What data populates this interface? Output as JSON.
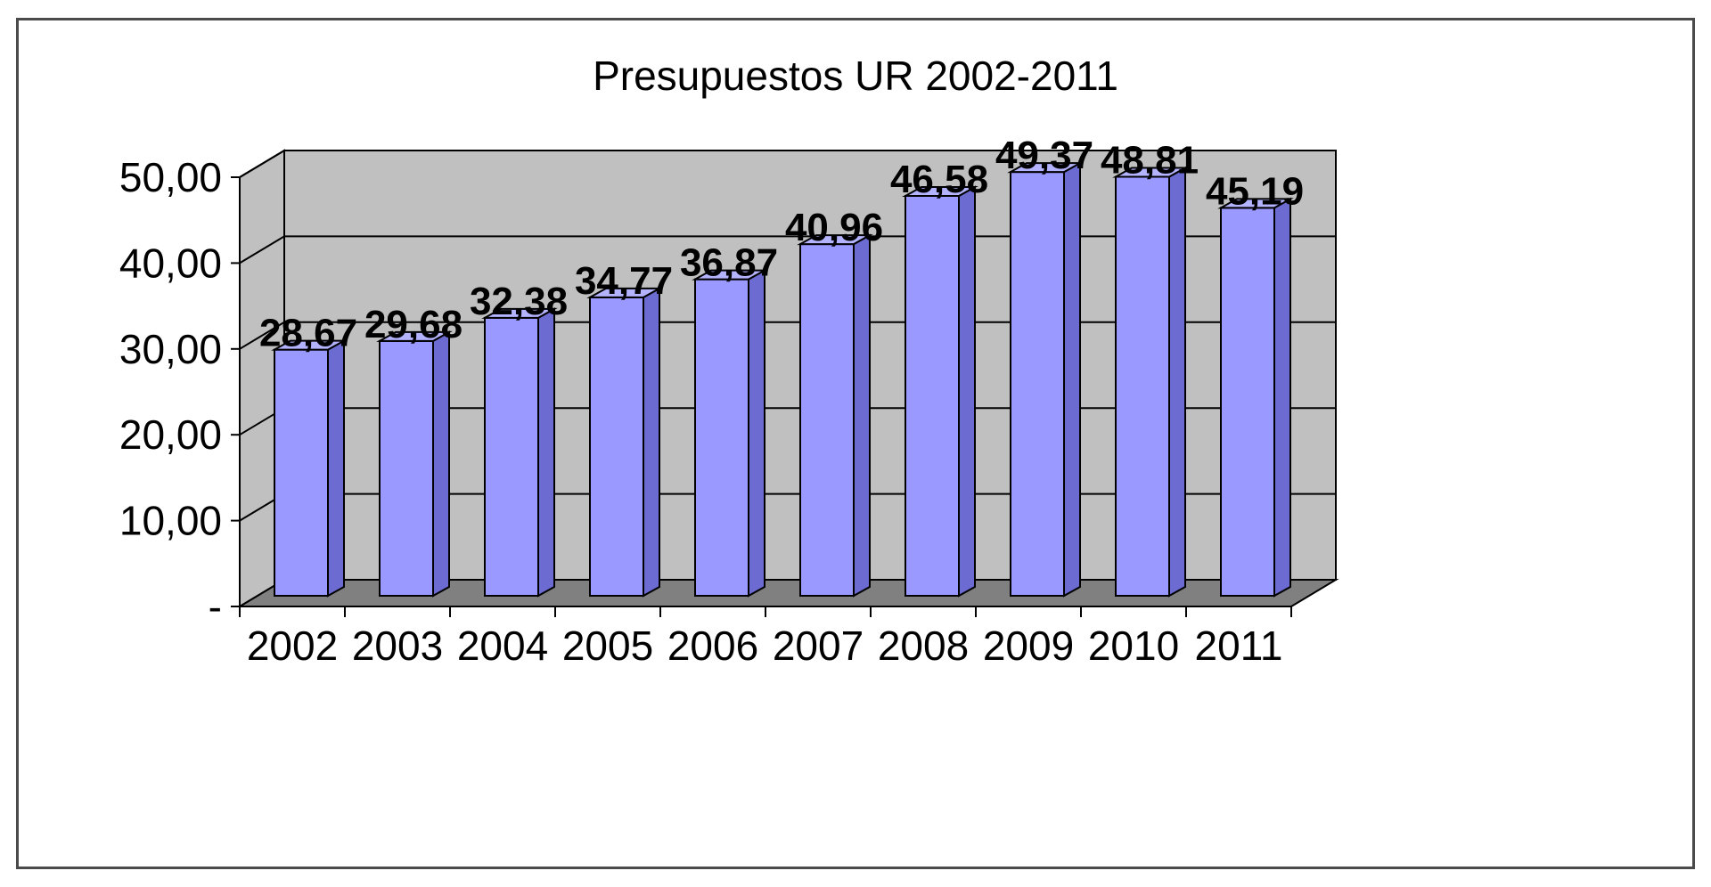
{
  "chart_data": {
    "type": "bar",
    "title": "Presupuestos UR 2002-2011",
    "xlabel": "",
    "ylabel": "",
    "categories": [
      "2002",
      "2003",
      "2004",
      "2005",
      "2006",
      "2007",
      "2008",
      "2009",
      "2010",
      "2011"
    ],
    "values": [
      28.67,
      29.68,
      32.38,
      34.77,
      36.87,
      40.96,
      46.58,
      49.37,
      48.81,
      45.19
    ],
    "data_labels": [
      "28,67",
      "29,68",
      "32,38",
      "34,77",
      "36,87",
      "40,96",
      "46,58",
      "49,37",
      "48,81",
      "45,19"
    ],
    "ylim": [
      0,
      50
    ],
    "y_ticks": [
      0,
      10,
      20,
      30,
      40,
      50
    ],
    "y_tick_labels": [
      "-",
      "10,00",
      "20,00",
      "30,00",
      "40,00",
      "50,00"
    ],
    "grid": true,
    "legend": "none",
    "style": "3d-column",
    "colors": {
      "bar_front": "#9999ff",
      "bar_side": "#6b6bd1",
      "bar_top": "#b3b3ff",
      "bar_outline": "#000000",
      "back_wall": "#c0c0c0",
      "side_wall": "#c0c0c0",
      "floor": "#808080",
      "gridline": "#000000"
    }
  }
}
